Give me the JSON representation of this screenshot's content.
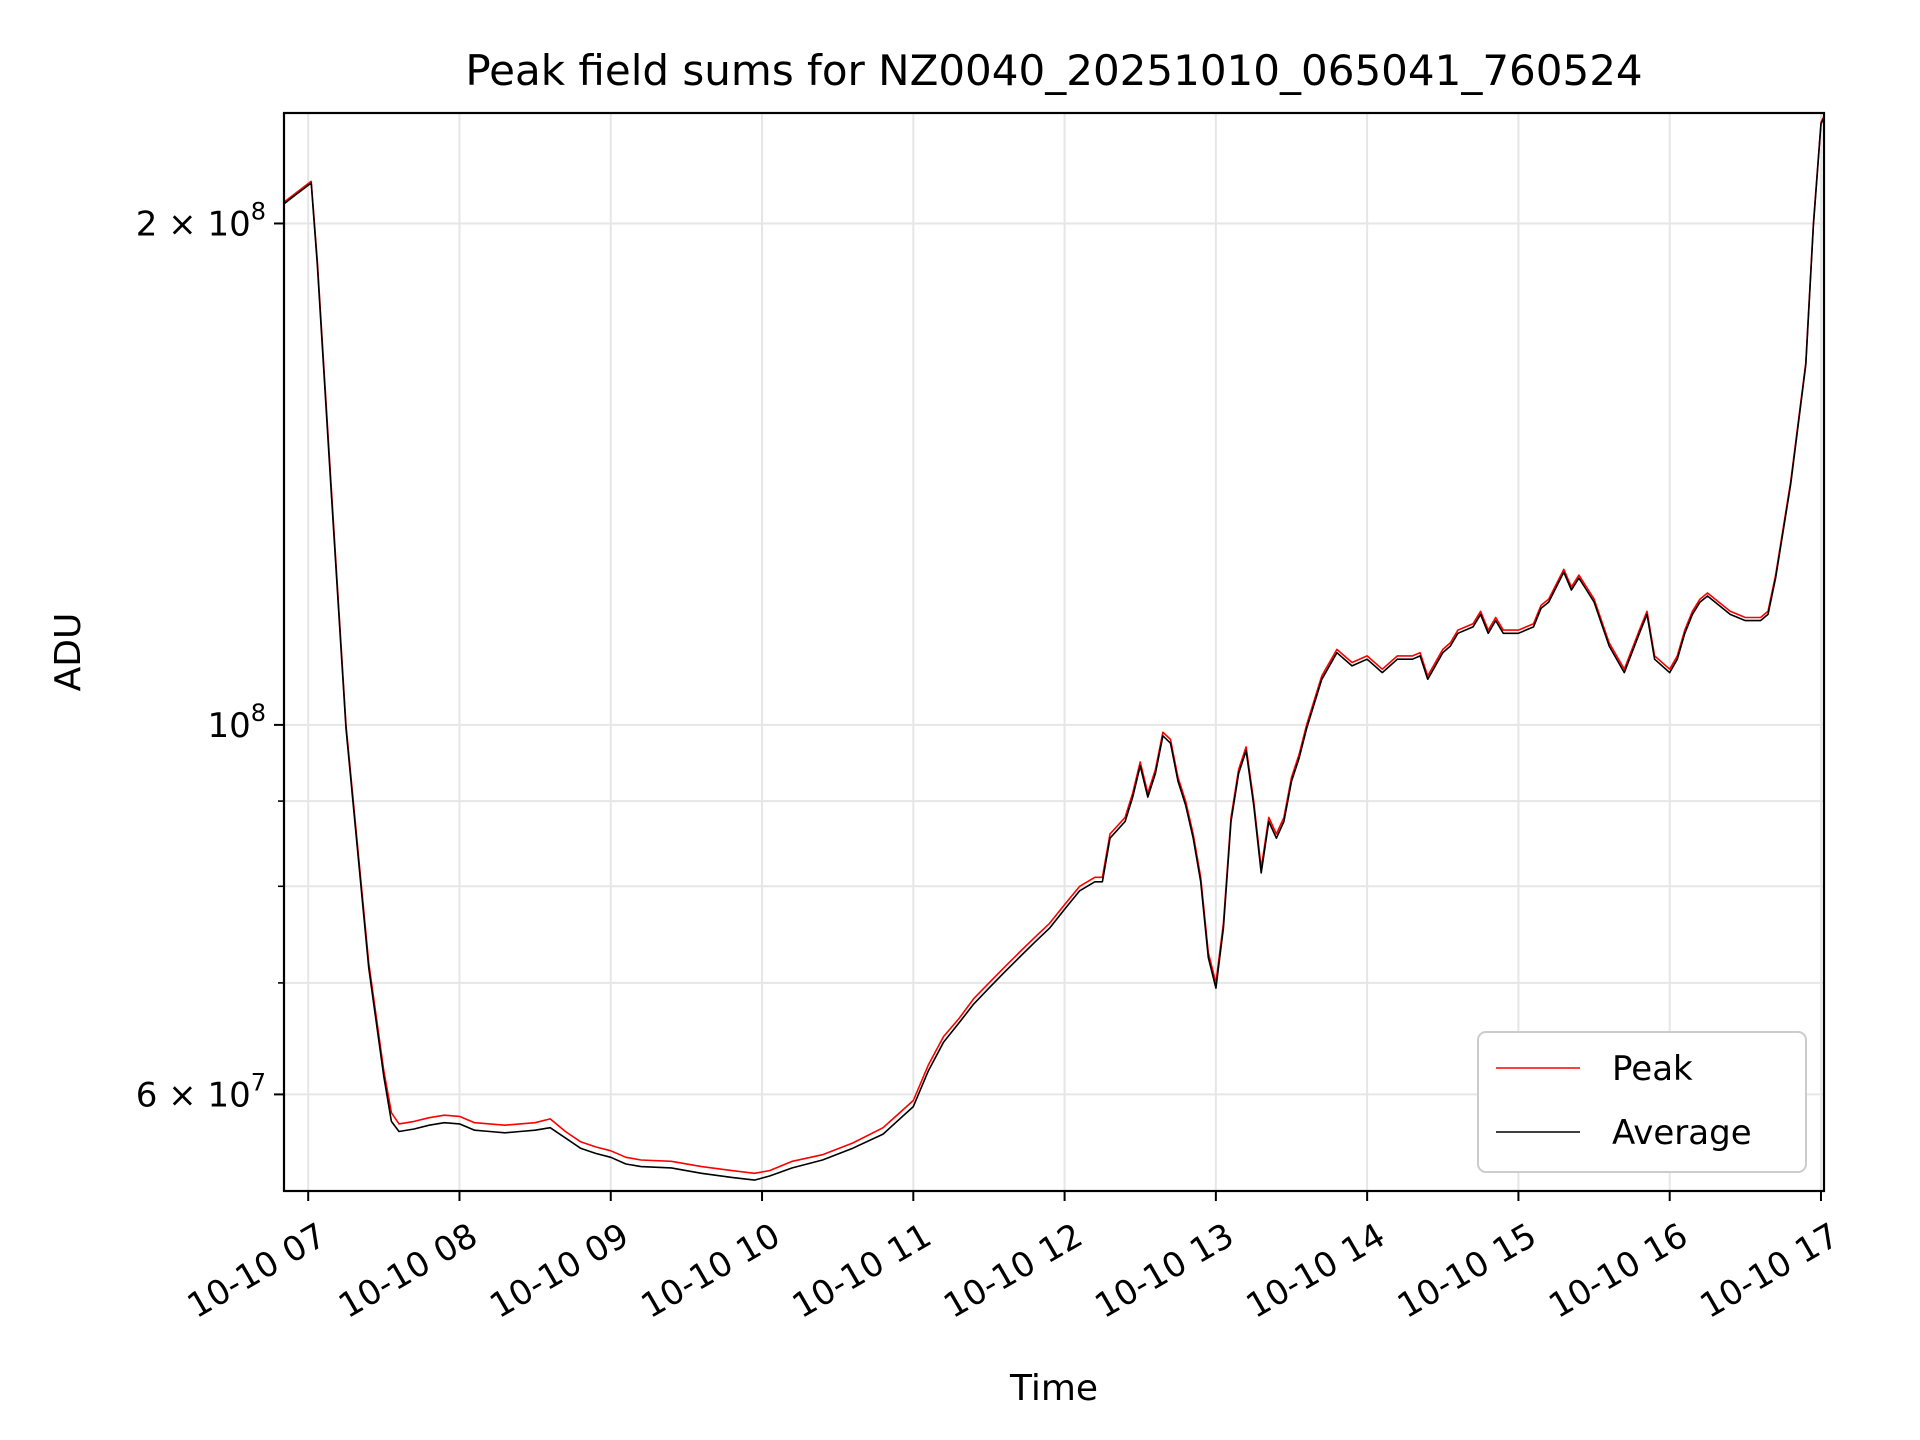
{
  "chart_data": {
    "type": "line",
    "title": "Peak field sums for NZ0040_20251010_065041_760524",
    "xlabel": "Time",
    "ylabel": "ADU",
    "yscale": "log",
    "xlim": [
      6.84,
      17.02
    ],
    "ylim": [
      52500000,
      233000000
    ],
    "grid": true,
    "legend_position": "lower-right",
    "x_ticks": [
      {
        "value": 7,
        "label": "10-10 07"
      },
      {
        "value": 8,
        "label": "10-10 08"
      },
      {
        "value": 9,
        "label": "10-10 09"
      },
      {
        "value": 10,
        "label": "10-10 10"
      },
      {
        "value": 11,
        "label": "10-10 11"
      },
      {
        "value": 12,
        "label": "10-10 12"
      },
      {
        "value": 13,
        "label": "10-10 13"
      },
      {
        "value": 14,
        "label": "10-10 14"
      },
      {
        "value": 15,
        "label": "10-10 15"
      },
      {
        "value": 16,
        "label": "10-10 16"
      },
      {
        "value": 17,
        "label": "10-10 17"
      }
    ],
    "y_ticks": [
      {
        "value": 60000000,
        "label": "6 × 10⁷",
        "mantissa": "6",
        "exponent": "7"
      },
      {
        "value": 100000000,
        "label": "10⁸",
        "mantissa": "",
        "exponent": "8"
      },
      {
        "value": 200000000,
        "label": "2 × 10⁸",
        "mantissa": "2",
        "exponent": "8"
      }
    ],
    "y_minor_ticks": [
      70000000,
      80000000,
      90000000
    ],
    "series": [
      {
        "name": "Peak",
        "color": "#ff0000",
        "x": [
          6.84,
          6.9,
          7.02,
          7.06,
          7.15,
          7.25,
          7.4,
          7.5,
          7.55,
          7.6,
          7.7,
          7.8,
          7.9,
          8.0,
          8.1,
          8.2,
          8.3,
          8.4,
          8.5,
          8.6,
          8.7,
          8.8,
          8.9,
          9.0,
          9.1,
          9.2,
          9.4,
          9.6,
          9.8,
          9.95,
          10.05,
          10.2,
          10.4,
          10.6,
          10.8,
          11.0,
          11.1,
          11.2,
          11.3,
          11.4,
          11.5,
          11.6,
          11.7,
          11.8,
          11.9,
          12.0,
          12.1,
          12.2,
          12.25,
          12.3,
          12.4,
          12.45,
          12.5,
          12.55,
          12.6,
          12.65,
          12.7,
          12.75,
          12.8,
          12.85,
          12.9,
          12.95,
          13.0,
          13.05,
          13.1,
          13.15,
          13.2,
          13.25,
          13.3,
          13.35,
          13.4,
          13.45,
          13.5,
          13.55,
          13.6,
          13.7,
          13.8,
          13.9,
          14.0,
          14.1,
          14.2,
          14.3,
          14.35,
          14.4,
          14.5,
          14.55,
          14.6,
          14.7,
          14.75,
          14.8,
          14.85,
          14.9,
          15.0,
          15.1,
          15.15,
          15.2,
          15.3,
          15.35,
          15.4,
          15.45,
          15.5,
          15.6,
          15.7,
          15.8,
          15.85,
          15.9,
          16.0,
          16.05,
          16.1,
          16.15,
          16.2,
          16.25,
          16.3,
          16.4,
          16.5,
          16.6,
          16.65,
          16.7,
          16.8,
          16.9,
          16.95,
          17.0,
          17.02
        ],
        "y": [
          206000000,
          208000000,
          212000000,
          190000000,
          140000000,
          100000000,
          72000000,
          62000000,
          58500000,
          57600000,
          57800000,
          58100000,
          58300000,
          58200000,
          57700000,
          57600000,
          57500000,
          57600000,
          57700000,
          58000000,
          57000000,
          56200000,
          55800000,
          55500000,
          55000000,
          54800000,
          54700000,
          54300000,
          54000000,
          53800000,
          54000000,
          54700000,
          55200000,
          56100000,
          57300000,
          59500000,
          62500000,
          65000000,
          66600000,
          68500000,
          70000000,
          71500000,
          73000000,
          74500000,
          76000000,
          78000000,
          80000000,
          81000000,
          81000000,
          86000000,
          88000000,
          91000000,
          95000000,
          91000000,
          94000000,
          99000000,
          98000000,
          93000000,
          90000000,
          86000000,
          81000000,
          73000000,
          70000000,
          76000000,
          88000000,
          94000000,
          97000000,
          90000000,
          82000000,
          88000000,
          86000000,
          88000000,
          93000000,
          96000000,
          100000000,
          107000000,
          111000000,
          109000000,
          110000000,
          108000000,
          110000000,
          110000000,
          110500000,
          107000000,
          111000000,
          112000000,
          114000000,
          115000000,
          117000000,
          114000000,
          116000000,
          114000000,
          114000000,
          115000000,
          118000000,
          119000000,
          124000000,
          121000000,
          123000000,
          121000000,
          119000000,
          112000000,
          108000000,
          114000000,
          117000000,
          110000000,
          108000000,
          110000000,
          114000000,
          117000000,
          119000000,
          120000000,
          119000000,
          117000000,
          116000000,
          116000000,
          117000000,
          123000000,
          140000000,
          165000000,
          200000000,
          230000000,
          232000000
        ]
      },
      {
        "name": "Average",
        "color": "#000000",
        "x": [
          6.84,
          6.9,
          7.02,
          7.06,
          7.15,
          7.25,
          7.4,
          7.5,
          7.55,
          7.6,
          7.7,
          7.8,
          7.9,
          8.0,
          8.1,
          8.2,
          8.3,
          8.4,
          8.5,
          8.6,
          8.7,
          8.8,
          8.9,
          9.0,
          9.1,
          9.2,
          9.4,
          9.6,
          9.8,
          9.95,
          10.05,
          10.2,
          10.4,
          10.6,
          10.8,
          11.0,
          11.1,
          11.2,
          11.3,
          11.4,
          11.5,
          11.6,
          11.7,
          11.8,
          11.9,
          12.0,
          12.1,
          12.2,
          12.25,
          12.3,
          12.4,
          12.45,
          12.5,
          12.55,
          12.6,
          12.65,
          12.7,
          12.75,
          12.8,
          12.85,
          12.9,
          12.95,
          13.0,
          13.05,
          13.1,
          13.15,
          13.2,
          13.25,
          13.3,
          13.35,
          13.4,
          13.45,
          13.5,
          13.55,
          13.6,
          13.7,
          13.8,
          13.9,
          14.0,
          14.1,
          14.2,
          14.3,
          14.35,
          14.4,
          14.5,
          14.55,
          14.6,
          14.7,
          14.75,
          14.8,
          14.85,
          14.9,
          15.0,
          15.1,
          15.15,
          15.2,
          15.3,
          15.35,
          15.4,
          15.45,
          15.5,
          15.6,
          15.7,
          15.8,
          15.85,
          15.9,
          16.0,
          16.05,
          16.1,
          16.15,
          16.2,
          16.25,
          16.3,
          16.4,
          16.5,
          16.6,
          16.65,
          16.7,
          16.8,
          16.9,
          16.95,
          17.0,
          17.02
        ],
        "y": [
          205500000,
          207500000,
          211500000,
          189000000,
          139000000,
          99500000,
          71500000,
          61500000,
          57800000,
          57000000,
          57200000,
          57500000,
          57700000,
          57600000,
          57100000,
          57000000,
          56900000,
          57000000,
          57100000,
          57300000,
          56500000,
          55700000,
          55300000,
          55000000,
          54500000,
          54300000,
          54200000,
          53800000,
          53500000,
          53300000,
          53600000,
          54200000,
          54800000,
          55700000,
          56800000,
          59000000,
          62000000,
          64500000,
          66200000,
          68000000,
          69500000,
          71000000,
          72500000,
          74000000,
          75500000,
          77500000,
          79500000,
          80500000,
          80500000,
          85500000,
          87500000,
          90500000,
          94500000,
          90500000,
          93500000,
          98500000,
          97500000,
          92500000,
          89500000,
          85500000,
          80500000,
          72500000,
          69500000,
          75500000,
          87500000,
          93500000,
          96500000,
          89500000,
          81500000,
          87500000,
          85500000,
          87500000,
          92500000,
          95500000,
          99500000,
          106500000,
          110500000,
          108500000,
          109500000,
          107500000,
          109500000,
          109500000,
          110000000,
          106500000,
          110500000,
          111500000,
          113500000,
          114500000,
          116500000,
          113500000,
          115500000,
          113500000,
          113500000,
          114500000,
          117500000,
          118500000,
          123500000,
          120500000,
          122500000,
          120500000,
          118500000,
          111500000,
          107500000,
          113500000,
          116500000,
          109500000,
          107500000,
          109500000,
          113500000,
          116500000,
          118500000,
          119500000,
          118500000,
          116500000,
          115500000,
          115500000,
          116500000,
          122500000,
          139500000,
          164500000,
          199500000,
          229500000,
          231500000
        ]
      }
    ]
  }
}
